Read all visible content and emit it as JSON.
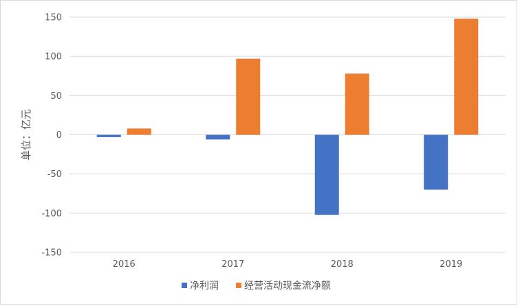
{
  "chart_data": {
    "type": "bar",
    "title": "",
    "xlabel": "",
    "ylabel": "单位：亿元",
    "categories": [
      "2016",
      "2017",
      "2018",
      "2019"
    ],
    "series": [
      {
        "name": "净利润",
        "color": "#4472c4",
        "values": [
          -3,
          -6,
          -102,
          -70
        ]
      },
      {
        "name": "经营活动现金流净额",
        "color": "#ed7d31",
        "values": [
          8,
          97,
          78,
          148
        ]
      }
    ],
    "ylim": [
      -150,
      150
    ],
    "yticks": [
      150,
      100,
      50,
      0,
      -50,
      -100,
      -150
    ],
    "grid": true,
    "legend": "bottom"
  }
}
